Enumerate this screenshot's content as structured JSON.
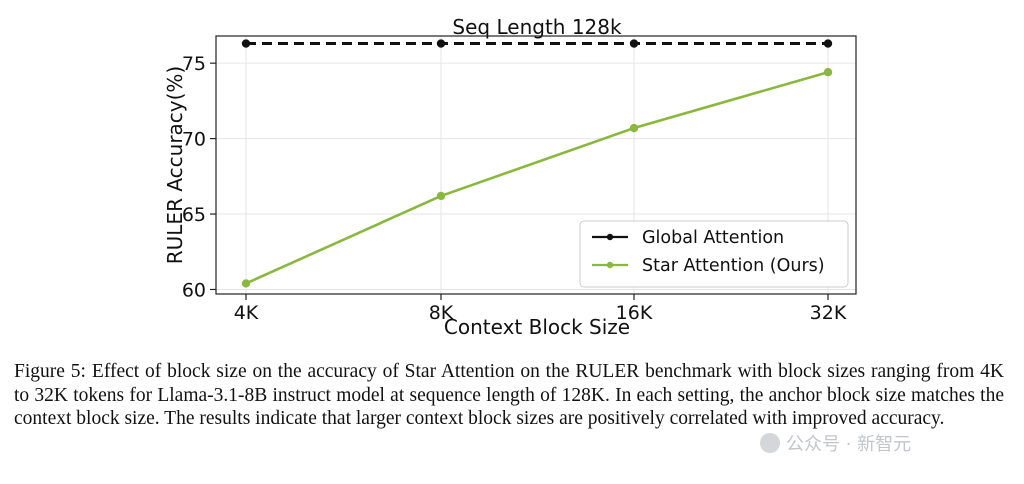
{
  "chart_data": {
    "type": "line",
    "title": "Seq Length 128k",
    "xlabel": "Context Block Size",
    "ylabel": "RULER Accuracy(%)",
    "categories": [
      "4K",
      "8K",
      "16K",
      "32K"
    ],
    "ylim": [
      59.7,
      76.8
    ],
    "yticks": [
      60,
      65,
      70,
      75
    ],
    "grid": true,
    "legend_position": "lower-right",
    "series": [
      {
        "name": "Global Attention",
        "values": [
          76.3,
          76.3,
          76.3,
          76.3
        ],
        "color": "#111111",
        "style": "dashed"
      },
      {
        "name": "Star Attention (Ours)",
        "values": [
          60.4,
          66.2,
          70.7,
          74.4
        ],
        "color": "#8ab83e",
        "style": "solid"
      }
    ]
  },
  "caption": {
    "label": "Figure 5:",
    "text": "Effect of block size on the accuracy of Star Attention on the RULER benchmark with block sizes ranging from 4K to 32K tokens for Llama-3.1-8B instruct model at sequence length of 128K. In each setting, the anchor block size matches the context block size. The results indicate that larger context block sizes are positively correlated with improved accuracy."
  },
  "watermark": {
    "text": "公众号 · 新智元",
    "icon": "wechat-icon"
  }
}
